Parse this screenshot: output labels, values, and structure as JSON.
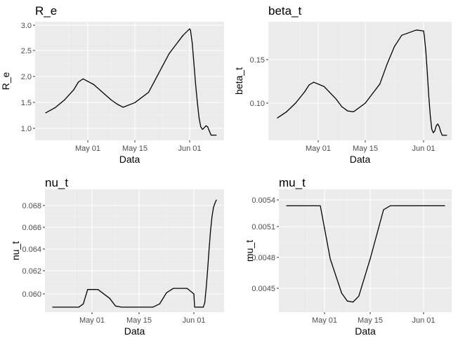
{
  "chart_data": [
    {
      "type": "line",
      "title": "R_e",
      "xlabel": "Data",
      "ylabel": "R_e",
      "xticks": [
        "May 01",
        "May 15",
        "Jun 01"
      ],
      "yticks": [
        "1.0",
        "1.5",
        "2.0",
        "2.5",
        "3.0"
      ],
      "ylim": [
        0.8,
        3.05
      ],
      "x": [
        0,
        2,
        4,
        6,
        7,
        8,
        10,
        12,
        13,
        14,
        15,
        17,
        19,
        20,
        21,
        22,
        24,
        25,
        26,
        28,
        30,
        32,
        34,
        36,
        38,
        40,
        42,
        44,
        46,
        48,
        50,
        52,
        54,
        56
      ],
      "series": [
        {
          "values": [
            1.3,
            1.4,
            1.55,
            1.75,
            1.9,
            1.96,
            1.85,
            1.65,
            1.55,
            1.47,
            1.41,
            1.5,
            1.7,
            1.95,
            2.2,
            2.45,
            2.8,
            2.93,
            2.9,
            2.65,
            2.25,
            1.85,
            1.5,
            1.2,
            1.03,
            0.98,
            1.01,
            1.05,
            1.03,
            0.95,
            0.87,
            0.87,
            0.87,
            0.87
          ]
        }
      ]
    },
    {
      "type": "line",
      "title": "beta_t",
      "xlabel": "Data",
      "ylabel": "beta_t",
      "xticks": [
        "May 01",
        "May 15",
        "Jun 01"
      ],
      "yticks": [
        "0.10",
        "0.15"
      ],
      "ylim": [
        0.06,
        0.19
      ],
      "x": [
        0,
        2,
        4,
        6,
        7,
        8,
        10,
        12,
        13,
        14,
        15,
        17,
        19,
        20,
        21,
        22,
        24,
        25,
        26,
        28,
        30,
        32,
        34,
        36,
        38,
        40,
        42,
        44,
        46,
        48,
        50,
        52,
        54,
        56
      ],
      "series": [
        {
          "values": [
            0.083,
            0.09,
            0.1,
            0.113,
            0.121,
            0.124,
            0.119,
            0.105,
            0.096,
            0.091,
            0.09,
            0.1,
            0.122,
            0.145,
            0.165,
            0.178,
            0.184,
            0.183,
            0.177,
            0.16,
            0.135,
            0.108,
            0.085,
            0.07,
            0.066,
            0.068,
            0.074,
            0.076,
            0.073,
            0.067,
            0.063,
            0.063,
            0.063,
            0.063
          ]
        }
      ]
    },
    {
      "type": "line",
      "title": "nu_t",
      "xlabel": "Data",
      "ylabel": "nu_t",
      "xticks": [
        "May 01",
        "May 15",
        "Jun 01"
      ],
      "yticks": [
        "0.060",
        "0.062",
        "0.064",
        "0.066",
        "0.068"
      ],
      "ylim": [
        0.0585,
        0.0688
      ],
      "x": [
        0,
        2,
        4,
        6,
        7,
        8,
        10,
        12,
        13,
        14,
        15,
        17,
        19,
        20,
        21,
        22,
        24,
        25,
        26,
        28,
        30,
        32,
        34,
        36,
        38,
        40,
        42,
        44,
        46,
        48,
        50,
        52,
        54,
        56
      ],
      "series": [
        {
          "values": [
            0.0588,
            0.0588,
            0.0588,
            0.0588,
            0.0591,
            0.0604,
            0.0604,
            0.0596,
            0.0589,
            0.0588,
            0.0588,
            0.0588,
            0.0588,
            0.0591,
            0.0601,
            0.0605,
            0.0605,
            0.06,
            0.0588,
            0.0588,
            0.0588,
            0.0588,
            0.0588,
            0.0588,
            0.0588,
            0.0592,
            0.0605,
            0.0622,
            0.0641,
            0.0657,
            0.067,
            0.0678,
            0.0682,
            0.0685
          ]
        }
      ]
    },
    {
      "type": "line",
      "title": "mu_t",
      "xlabel": "Data",
      "ylabel": "mu_t",
      "xticks": [
        "May 01",
        "May 15",
        "Jun 01"
      ],
      "yticks": [
        "0.0045",
        "0.0048",
        "0.0051",
        "0.0054"
      ],
      "ylim": [
        0.00427,
        0.00541
      ],
      "x": [
        0,
        2,
        4,
        6,
        7,
        8,
        10,
        12,
        13,
        14,
        15,
        17,
        19,
        20,
        21,
        22,
        24,
        25,
        26,
        28,
        30,
        32,
        34,
        36,
        38,
        40,
        42,
        44,
        46,
        48,
        50,
        52,
        54,
        56
      ],
      "series": [
        {
          "values": [
            0.00534,
            0.00534,
            0.00534,
            0.00534,
            0.00534,
            0.00534,
            0.0048,
            0.00445,
            0.00437,
            0.00436,
            0.00442,
            0.0048,
            0.0053,
            0.00534,
            0.00534,
            0.00534,
            0.00534,
            0.00534,
            0.00534,
            0.00534,
            0.00534,
            0.00534,
            0.00534,
            0.00534,
            0.00534,
            0.00534,
            0.00534,
            0.00534,
            0.00534,
            0.00534,
            0.00534,
            0.00534,
            0.00534,
            0.00534
          ]
        }
      ]
    }
  ]
}
